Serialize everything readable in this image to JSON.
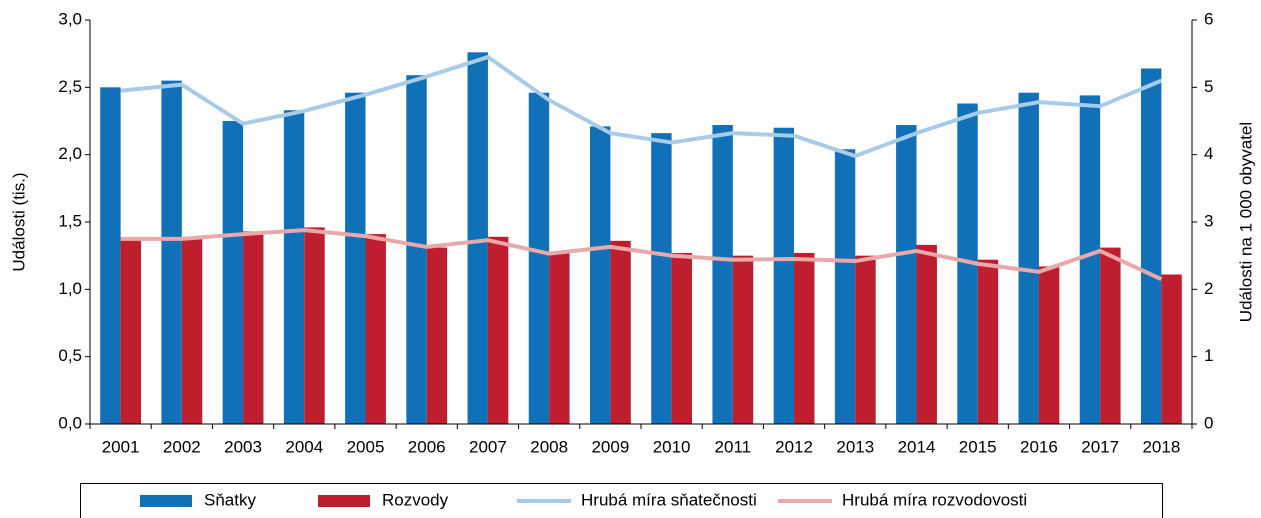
{
  "chart_data": {
    "type": "bar_line",
    "y_label": "Události (tis.)",
    "y2_label": "Události na 1 000 obyvatel",
    "categories": [
      "2001",
      "2002",
      "2003",
      "2004",
      "2005",
      "2006",
      "2007",
      "2008",
      "2009",
      "2010",
      "2011",
      "2012",
      "2013",
      "2014",
      "2015",
      "2016",
      "2017",
      "2018"
    ],
    "ylim": [
      0,
      3
    ],
    "yticks": [
      {
        "value": 0,
        "label": "0,0"
      },
      {
        "value": 0.5,
        "label": "0,5"
      },
      {
        "value": 1,
        "label": "1,0"
      },
      {
        "value": 1.5,
        "label": "1,5"
      },
      {
        "value": 2,
        "label": "2,0"
      },
      {
        "value": 2.5,
        "label": "2,5"
      },
      {
        "value": 3,
        "label": "3,0"
      }
    ],
    "y2lim": [
      0,
      6
    ],
    "y2ticks": [
      0,
      1,
      2,
      3,
      4,
      5,
      6
    ],
    "series": [
      {
        "name": "Sňatky",
        "type": "bar",
        "color": "#1070b8",
        "values": [
          2.5,
          2.55,
          2.25,
          2.33,
          2.46,
          2.59,
          2.76,
          2.46,
          2.21,
          2.16,
          2.22,
          2.2,
          2.04,
          2.22,
          2.38,
          2.46,
          2.44,
          2.64
        ]
      },
      {
        "name": "Rozvody",
        "type": "bar",
        "color": "#be1e2d",
        "values": [
          1.38,
          1.38,
          1.43,
          1.46,
          1.41,
          1.31,
          1.39,
          1.28,
          1.36,
          1.27,
          1.25,
          1.27,
          1.25,
          1.33,
          1.22,
          1.17,
          1.31,
          1.11
        ]
      },
      {
        "name": "Hrubá míra sňatečnosti",
        "type": "line",
        "axis": "y2",
        "color": "#a8cce8",
        "values": [
          4.95,
          5.04,
          4.46,
          4.65,
          4.89,
          5.16,
          5.45,
          4.81,
          4.32,
          4.18,
          4.32,
          4.28,
          3.98,
          4.32,
          4.62,
          4.78,
          4.72,
          5.1
        ]
      },
      {
        "name": "Hrubá míra rozvodovosti",
        "type": "line",
        "axis": "y2",
        "color": "#e9a9aa",
        "values": [
          2.75,
          2.75,
          2.82,
          2.88,
          2.79,
          2.63,
          2.73,
          2.53,
          2.63,
          2.5,
          2.44,
          2.45,
          2.42,
          2.57,
          2.38,
          2.26,
          2.57,
          2.15
        ]
      }
    ]
  }
}
